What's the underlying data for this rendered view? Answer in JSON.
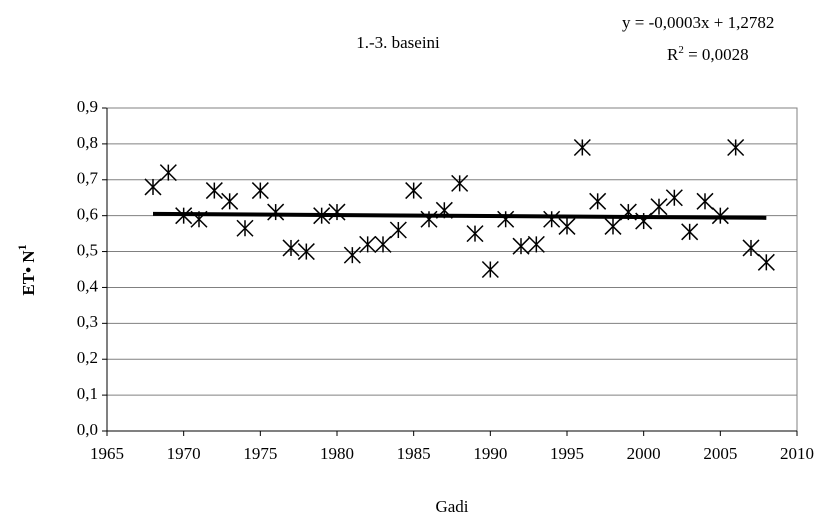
{
  "chart_data": {
    "type": "scatter",
    "title": "1.-3. baseini",
    "x_label": "Gadi",
    "y_label": {
      "text": "ET• N",
      "sup": "1"
    },
    "equation": "y = -0,0003x + 1,2782",
    "r_squared": {
      "base": "R",
      "sup": "2",
      "text": " = 0,0028"
    },
    "x": [
      1968,
      1969,
      1970,
      1971,
      1972,
      1973,
      1974,
      1975,
      1976,
      1977,
      1978,
      1979,
      1980,
      1981,
      1982,
      1983,
      1984,
      1985,
      1986,
      1987,
      1988,
      1989,
      1990,
      1991,
      1992,
      1993,
      1994,
      1995,
      1996,
      1997,
      1998,
      1999,
      2000,
      2001,
      2002,
      2003,
      2004,
      2005,
      2006,
      2007,
      2008
    ],
    "values": [
      0.68,
      0.72,
      0.6,
      0.59,
      0.67,
      0.64,
      0.565,
      0.67,
      0.61,
      0.51,
      0.5,
      0.6,
      0.61,
      0.49,
      0.52,
      0.52,
      0.56,
      0.67,
      0.59,
      0.615,
      0.69,
      0.55,
      0.45,
      0.59,
      0.515,
      0.52,
      0.59,
      0.57,
      0.79,
      0.64,
      0.57,
      0.61,
      0.585,
      0.625,
      0.65,
      0.555,
      0.64,
      0.6,
      0.79,
      0.51,
      0.47
    ],
    "color": "#000000",
    "trend": {
      "x": [
        1968,
        2008
      ],
      "values": [
        0.605,
        0.594
      ],
      "color": "#000000"
    },
    "xlim": [
      1965,
      2010
    ],
    "xticks": [
      1965,
      1970,
      1975,
      1980,
      1985,
      1990,
      1995,
      2000,
      2005,
      2010
    ],
    "ylim": [
      0,
      0.9
    ],
    "yticks": [
      {
        "value": 0,
        "label": "0,0"
      },
      {
        "value": 0.1,
        "label": "0,1"
      },
      {
        "value": 0.2,
        "label": "0,2"
      },
      {
        "value": 0.3,
        "label": "0,3"
      },
      {
        "value": 0.4,
        "label": "0,4"
      },
      {
        "value": 0.5,
        "label": "0,5"
      },
      {
        "value": 0.6,
        "label": "0,6"
      },
      {
        "value": 0.7,
        "label": "0,7"
      },
      {
        "value": 0.8,
        "label": "0,8"
      },
      {
        "value": 0.9,
        "label": "0,9"
      }
    ],
    "grid": true
  }
}
